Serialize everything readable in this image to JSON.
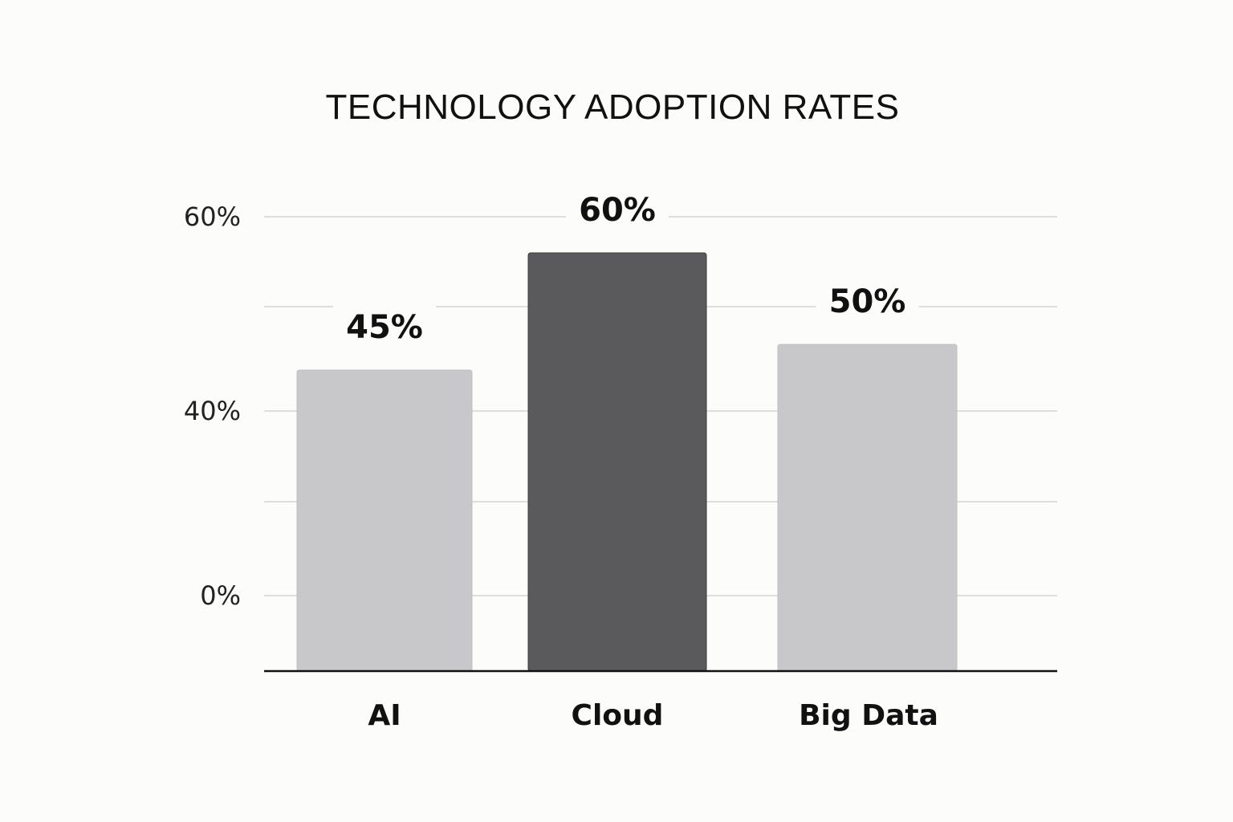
{
  "chart_data": {
    "type": "bar",
    "title": "TECHNOLOGY ADOPTION RATES",
    "xlabel": "",
    "ylabel": "",
    "categories": [
      "AI",
      "Cloud",
      "Big Data"
    ],
    "values": [
      45,
      60,
      50
    ],
    "data_labels": [
      "45%",
      "60%",
      "50%"
    ],
    "y_ticks": [
      {
        "value": 0,
        "label": "0%"
      },
      {
        "value": 40,
        "label": "40%"
      },
      {
        "value": 60,
        "label": "60%"
      }
    ],
    "ylim": [
      0,
      60
    ],
    "grid": true,
    "legend": "none",
    "colors": {
      "AI": "#c8c8ca",
      "Cloud": "#5a5a5d",
      "Big Data": "#c8c8ca",
      "background": "#fcfcfa"
    }
  }
}
